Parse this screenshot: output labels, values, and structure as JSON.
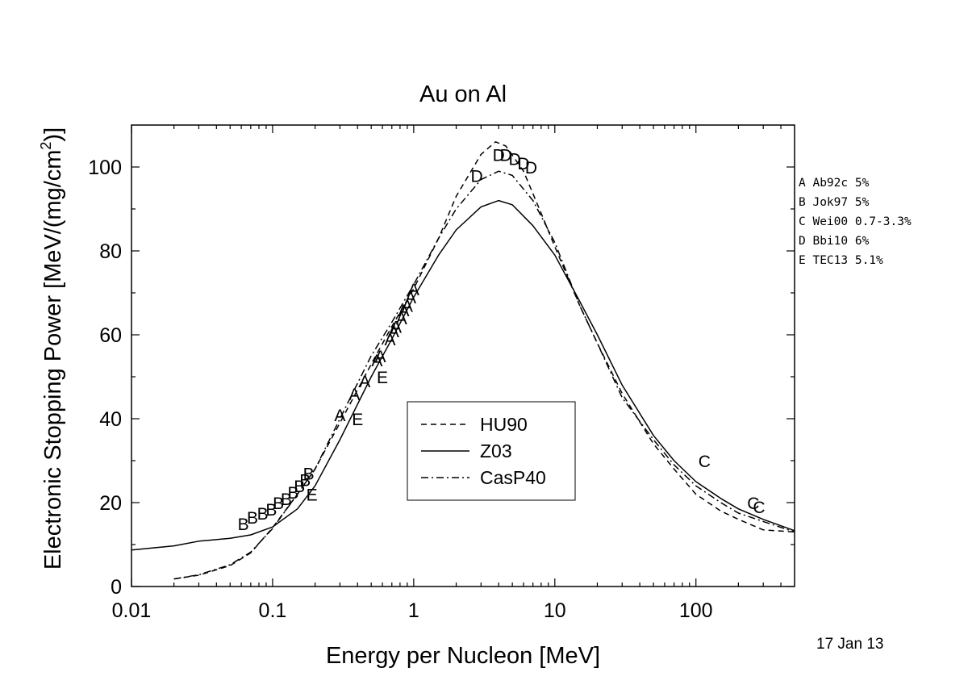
{
  "chart_data": {
    "type": "line",
    "title": "Au on Al",
    "xlabel": "Energy per Nucleon [MeV]",
    "ylabel_main": "Electronic Stopping Power [MeV/(mg/cm",
    "ylabel_sup": "2",
    "ylabel_end": ")]",
    "x_scale": "log",
    "xlim": [
      0.01,
      500
    ],
    "ylim": [
      0,
      110
    ],
    "x_ticks": [
      0.01,
      0.1,
      1,
      10,
      100
    ],
    "x_tick_labels": [
      "0.01",
      "0.1",
      "1",
      "10",
      "100"
    ],
    "y_ticks": [
      0,
      20,
      40,
      60,
      80,
      100
    ],
    "y_tick_labels": [
      "0",
      "20",
      "40",
      "60",
      "80",
      "100"
    ],
    "grid": false,
    "legend_position": "center",
    "series": [
      {
        "name": "HU90",
        "style": "dashed",
        "x": [
          0.02,
          0.03,
          0.05,
          0.07,
          0.1,
          0.15,
          0.2,
          0.3,
          0.5,
          0.7,
          1.0,
          1.5,
          2,
          3,
          3.8,
          4.5,
          6,
          8,
          10,
          15,
          20,
          30,
          50,
          70,
          100,
          150,
          200,
          300,
          500
        ],
        "y": [
          1.8,
          2.7,
          5,
          8,
          14,
          22,
          28,
          39,
          53,
          62,
          71,
          83,
          93,
          103,
          106,
          105,
          99,
          89,
          81,
          67,
          58,
          46,
          34,
          28,
          22,
          18,
          16,
          13.5,
          13
        ]
      },
      {
        "name": "Z03",
        "style": "solid",
        "x": [
          0.01,
          0.02,
          0.03,
          0.05,
          0.07,
          0.1,
          0.15,
          0.2,
          0.3,
          0.5,
          0.7,
          1.0,
          1.5,
          2,
          3,
          4,
          5,
          7,
          10,
          15,
          20,
          30,
          50,
          70,
          100,
          150,
          200,
          300,
          500
        ],
        "y": [
          8.7,
          9.7,
          10.8,
          11.5,
          12.3,
          14.2,
          18.5,
          24,
          35,
          50,
          59,
          69,
          79,
          85,
          90.5,
          92,
          91,
          86,
          79,
          68,
          60,
          48,
          36,
          30,
          25,
          21,
          18.5,
          16,
          13.3
        ]
      },
      {
        "name": "CasP40",
        "style": "dashdot",
        "x": [
          0.02,
          0.03,
          0.05,
          0.07,
          0.1,
          0.15,
          0.2,
          0.3,
          0.5,
          0.7,
          1.0,
          1.5,
          2,
          3,
          4,
          5,
          7,
          10,
          15,
          20,
          30,
          50,
          70,
          100,
          150,
          200,
          300,
          500
        ],
        "y": [
          1.8,
          2.8,
          5.2,
          8.2,
          13.8,
          22,
          28,
          40,
          55,
          63,
          72,
          83,
          90,
          97,
          99,
          98,
          92,
          82,
          67,
          58,
          45,
          35,
          29,
          24,
          20,
          17.5,
          15.5,
          13
        ]
      }
    ],
    "data_markers": [
      {
        "letter": "A",
        "points": [
          [
            0.3,
            41
          ],
          [
            0.38,
            46
          ],
          [
            0.45,
            49
          ],
          [
            0.55,
            54
          ],
          [
            0.58,
            55
          ],
          [
            0.68,
            59
          ],
          [
            0.72,
            61
          ],
          [
            0.75,
            62
          ],
          [
            0.82,
            64
          ],
          [
            0.85,
            66
          ],
          [
            0.9,
            67
          ],
          [
            0.95,
            69
          ],
          [
            1.0,
            71
          ]
        ]
      },
      {
        "letter": "B",
        "points": [
          [
            0.062,
            15
          ],
          [
            0.072,
            16.5
          ],
          [
            0.085,
            17.5
          ],
          [
            0.098,
            18.5
          ],
          [
            0.11,
            20
          ],
          [
            0.125,
            21
          ],
          [
            0.14,
            22.5
          ],
          [
            0.155,
            24
          ],
          [
            0.17,
            25.5
          ],
          [
            0.18,
            27
          ]
        ]
      },
      {
        "letter": "C",
        "points": [
          [
            115,
            30
          ],
          [
            255,
            20
          ],
          [
            280,
            19
          ]
        ]
      },
      {
        "letter": "D",
        "points": [
          [
            2.8,
            98
          ],
          [
            4.0,
            103
          ],
          [
            4.5,
            103
          ],
          [
            5.2,
            102
          ],
          [
            6.0,
            101
          ],
          [
            6.8,
            100
          ]
        ]
      },
      {
        "letter": "E",
        "points": [
          [
            0.19,
            22
          ],
          [
            0.4,
            40
          ],
          [
            0.6,
            50
          ]
        ]
      }
    ],
    "source_legend": [
      {
        "letter": "A",
        "text": "A Ab92c 5%"
      },
      {
        "letter": "B",
        "text": "B Jok97 5%"
      },
      {
        "letter": "C",
        "text": "C Wei00 0.7-3.3%"
      },
      {
        "letter": "D",
        "text": "D Bbi10 6%"
      },
      {
        "letter": "E",
        "text": "E TEC13 5.1%"
      }
    ]
  },
  "date_stamp": "17 Jan 13"
}
